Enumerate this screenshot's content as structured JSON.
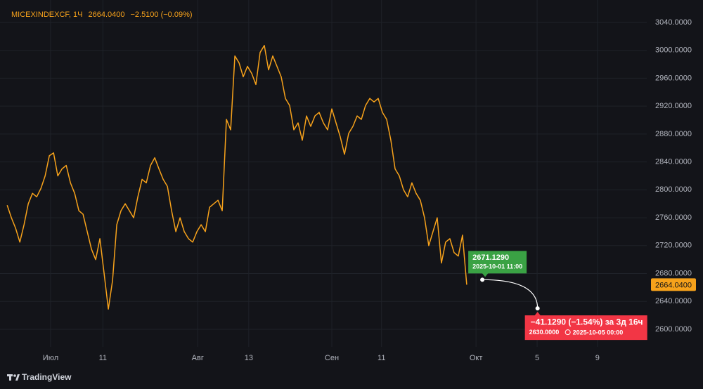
{
  "chart_data": {
    "type": "line",
    "header": {
      "symbol": "MICEXINDEXCF, 1Ч",
      "price": "2664.0400",
      "change": "−2.5100 (−0.09%)"
    },
    "brand": "TradingView",
    "xlim": [
      -1.7,
      151.7
    ],
    "xticks": [
      {
        "value": 10.3,
        "label": "Июл"
      },
      {
        "value": 22.7,
        "label": "11"
      },
      {
        "value": 45.2,
        "label": "Авг"
      },
      {
        "value": 57.3,
        "label": "13"
      },
      {
        "value": 77,
        "label": "Сен"
      },
      {
        "value": 88.8,
        "label": "11"
      },
      {
        "value": 111.2,
        "label": "Окт"
      },
      {
        "value": 125.7,
        "label": "5"
      },
      {
        "value": 140,
        "label": "9"
      }
    ],
    "ylim": [
      2574.8,
      3072.2
    ],
    "yticks": [
      {
        "value": 2600,
        "label": "2600.0000"
      },
      {
        "value": 2640,
        "label": "2640.0000"
      },
      {
        "value": 2680,
        "label": "2680.0000"
      },
      {
        "value": 2720,
        "label": "2720.0000"
      },
      {
        "value": 2760,
        "label": "2760.0000"
      },
      {
        "value": 2800,
        "label": "2800.0000"
      },
      {
        "value": 2840,
        "label": "2840.0000"
      },
      {
        "value": 2880,
        "label": "2880.0000"
      },
      {
        "value": 2920,
        "label": "2920.0000"
      },
      {
        "value": 2960,
        "label": "2960.0000"
      },
      {
        "value": 3000,
        "label": "3000.0000"
      },
      {
        "value": 3040,
        "label": "3040.0000"
      }
    ],
    "grid": true,
    "series": [
      {
        "name": "MICEXINDEXCF",
        "color": "#f7a21b",
        "values": [
          2778,
          2760,
          2745,
          2725,
          2750,
          2780,
          2795,
          2790,
          2802,
          2820,
          2849,
          2853,
          2820,
          2830,
          2835,
          2810,
          2795,
          2770,
          2765,
          2740,
          2715,
          2700,
          2730,
          2680,
          2629,
          2670,
          2750,
          2770,
          2780,
          2770,
          2760,
          2790,
          2815,
          2810,
          2835,
          2846,
          2830,
          2815,
          2805,
          2770,
          2740,
          2760,
          2740,
          2730,
          2725,
          2740,
          2750,
          2740,
          2775,
          2780,
          2785,
          2770,
          2901,
          2886,
          2992,
          2982,
          2962,
          2977,
          2967,
          2951,
          2997,
          3007,
          2972,
          2992,
          2977,
          2962,
          2931,
          2921,
          2886,
          2896,
          2871,
          2906,
          2891,
          2906,
          2911,
          2896,
          2886,
          2916,
          2896,
          2876,
          2851,
          2881,
          2891,
          2906,
          2901,
          2921,
          2931,
          2926,
          2931,
          2911,
          2901,
          2871,
          2830,
          2820,
          2800,
          2790,
          2810,
          2795,
          2785,
          2760,
          2720,
          2740,
          2760,
          2695,
          2725,
          2730,
          2710,
          2705,
          2735,
          2664.04
        ]
      }
    ],
    "last_price_label": "2664.0400",
    "measure": {
      "start": {
        "x": 112.7,
        "value": 2671.129,
        "label": "2671.1290",
        "time": "2025-10-01 11:00"
      },
      "end": {
        "x": 125.8,
        "value": 2630,
        "change": "−41.1290 (−1.54%) за 3д 16ч",
        "label": "2630.0000",
        "time": "2025-10-05  00:00"
      }
    }
  }
}
